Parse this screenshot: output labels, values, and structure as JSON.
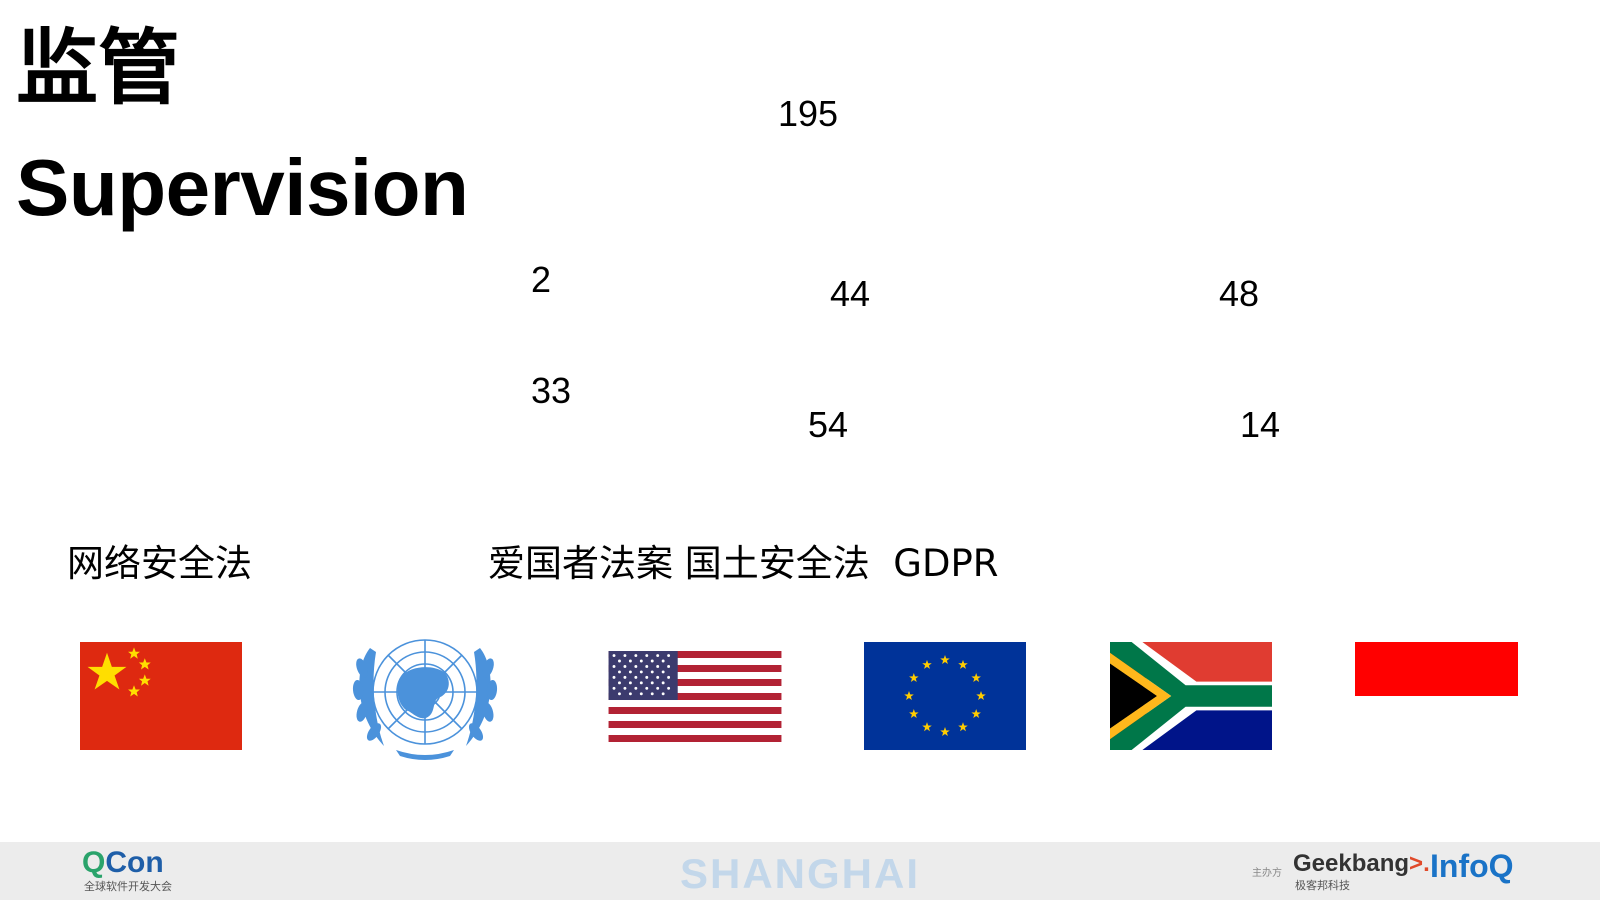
{
  "title": {
    "cn": "监管",
    "en": "Supervision"
  },
  "numbers": {
    "n195": "195",
    "n2": "2",
    "n44": "44",
    "n48": "48",
    "n33": "33",
    "n54": "54",
    "n14": "14"
  },
  "laws": {
    "china": "网络安全法",
    "others": "爱国者法案 国土安全法  GDPR"
  },
  "colors": {
    "china_red": "#de2910",
    "china_yellow": "#ffde00",
    "un_blue": "#4b92db",
    "us_red": "#b22234",
    "us_blue": "#3c3b6e",
    "eu_blue": "#003399",
    "eu_yellow": "#ffcc00",
    "za_red": "#e03c31",
    "za_green": "#007749",
    "za_blue": "#001489",
    "za_gold": "#ffb81c",
    "indonesia_red": "#ff0000",
    "footer_bg": "#ececec"
  },
  "flags": [
    "china-flag",
    "un-emblem",
    "us-flag",
    "eu-flag",
    "south-africa-flag",
    "indonesia-flag"
  ],
  "footer": {
    "qcon_q": "Q",
    "qcon_con": "Con",
    "qcon_subtitle": "全球软件开发大会",
    "city": "SHANGHAI",
    "organizer_label": "主办方",
    "geek_a": "Geek",
    "geek_k": "bang",
    "geek_arrow": ">.",
    "geek_subtitle": "极客邦科技",
    "infoq": "InfoQ"
  }
}
